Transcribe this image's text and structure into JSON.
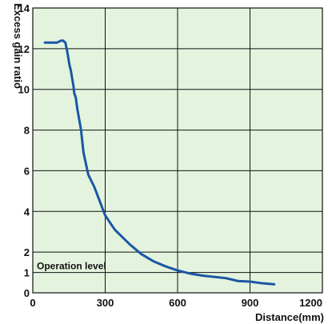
{
  "chart_data": {
    "type": "line",
    "title": "",
    "xlabel": "Distance(mm)",
    "ylabel": "Excess gain ratio",
    "xlim": [
      0,
      1200
    ],
    "ylim": [
      0,
      14
    ],
    "grid": true,
    "x_ticks": [
      0,
      300,
      600,
      900,
      1200
    ],
    "y_ticks": [
      0,
      1,
      2,
      4,
      6,
      8,
      10,
      12,
      14
    ],
    "annotation": "Operation level",
    "annotation_level": 1,
    "colors": {
      "background": "#e4f3de",
      "grid": "#111111",
      "line": "#1a57a3"
    },
    "series": [
      {
        "x": [
          50,
          100,
          118,
          125,
          135,
          142,
          145,
          152,
          158,
          168,
          172,
          178,
          185,
          200,
          210,
          230,
          255,
          300,
          340,
          400,
          450,
          500,
          550,
          600,
          650,
          700,
          800,
          850,
          900,
          950,
          1000
        ],
        "y": [
          12.3,
          12.3,
          12.4,
          12.4,
          12.3,
          11.9,
          11.7,
          11.2,
          10.9,
          10.2,
          9.8,
          9.6,
          9.0,
          8.0,
          6.9,
          5.8,
          5.2,
          3.8,
          3.1,
          2.4,
          1.9,
          1.55,
          1.3,
          1.1,
          0.95,
          0.85,
          0.72,
          0.58,
          0.55,
          0.47,
          0.42
        ]
      }
    ]
  }
}
